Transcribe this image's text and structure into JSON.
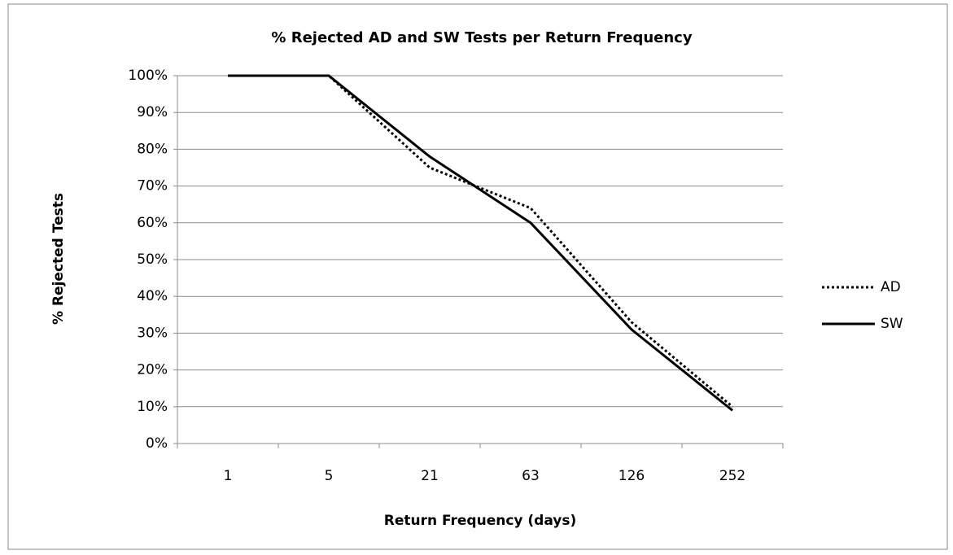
{
  "chart_data": {
    "type": "line",
    "title": "% Rejected AD and SW Tests per Return Frequency",
    "xlabel": "Return Frequency (days)",
    "ylabel": "% Rejected Tests",
    "categories": [
      "1",
      "5",
      "21",
      "63",
      "126",
      "252"
    ],
    "series": [
      {
        "name": "AD",
        "color": "#000000",
        "style": "dotted",
        "values": [
          100,
          100,
          75,
          64,
          33,
          10
        ]
      },
      {
        "name": "SW",
        "color": "#000000",
        "style": "solid",
        "values": [
          100,
          100,
          78,
          60,
          31,
          9
        ]
      }
    ],
    "ylim": [
      0,
      100
    ],
    "yticks": [
      {
        "value": 0,
        "label": "0%"
      },
      {
        "value": 10,
        "label": "10%"
      },
      {
        "value": 20,
        "label": "20%"
      },
      {
        "value": 30,
        "label": "30%"
      },
      {
        "value": 40,
        "label": "40%"
      },
      {
        "value": 50,
        "label": "50%"
      },
      {
        "value": 60,
        "label": "60%"
      },
      {
        "value": 70,
        "label": "70%"
      },
      {
        "value": 80,
        "label": "80%"
      },
      {
        "value": 90,
        "label": "90%"
      },
      {
        "value": 100,
        "label": "100%"
      }
    ],
    "grid": true,
    "legend": "right"
  }
}
